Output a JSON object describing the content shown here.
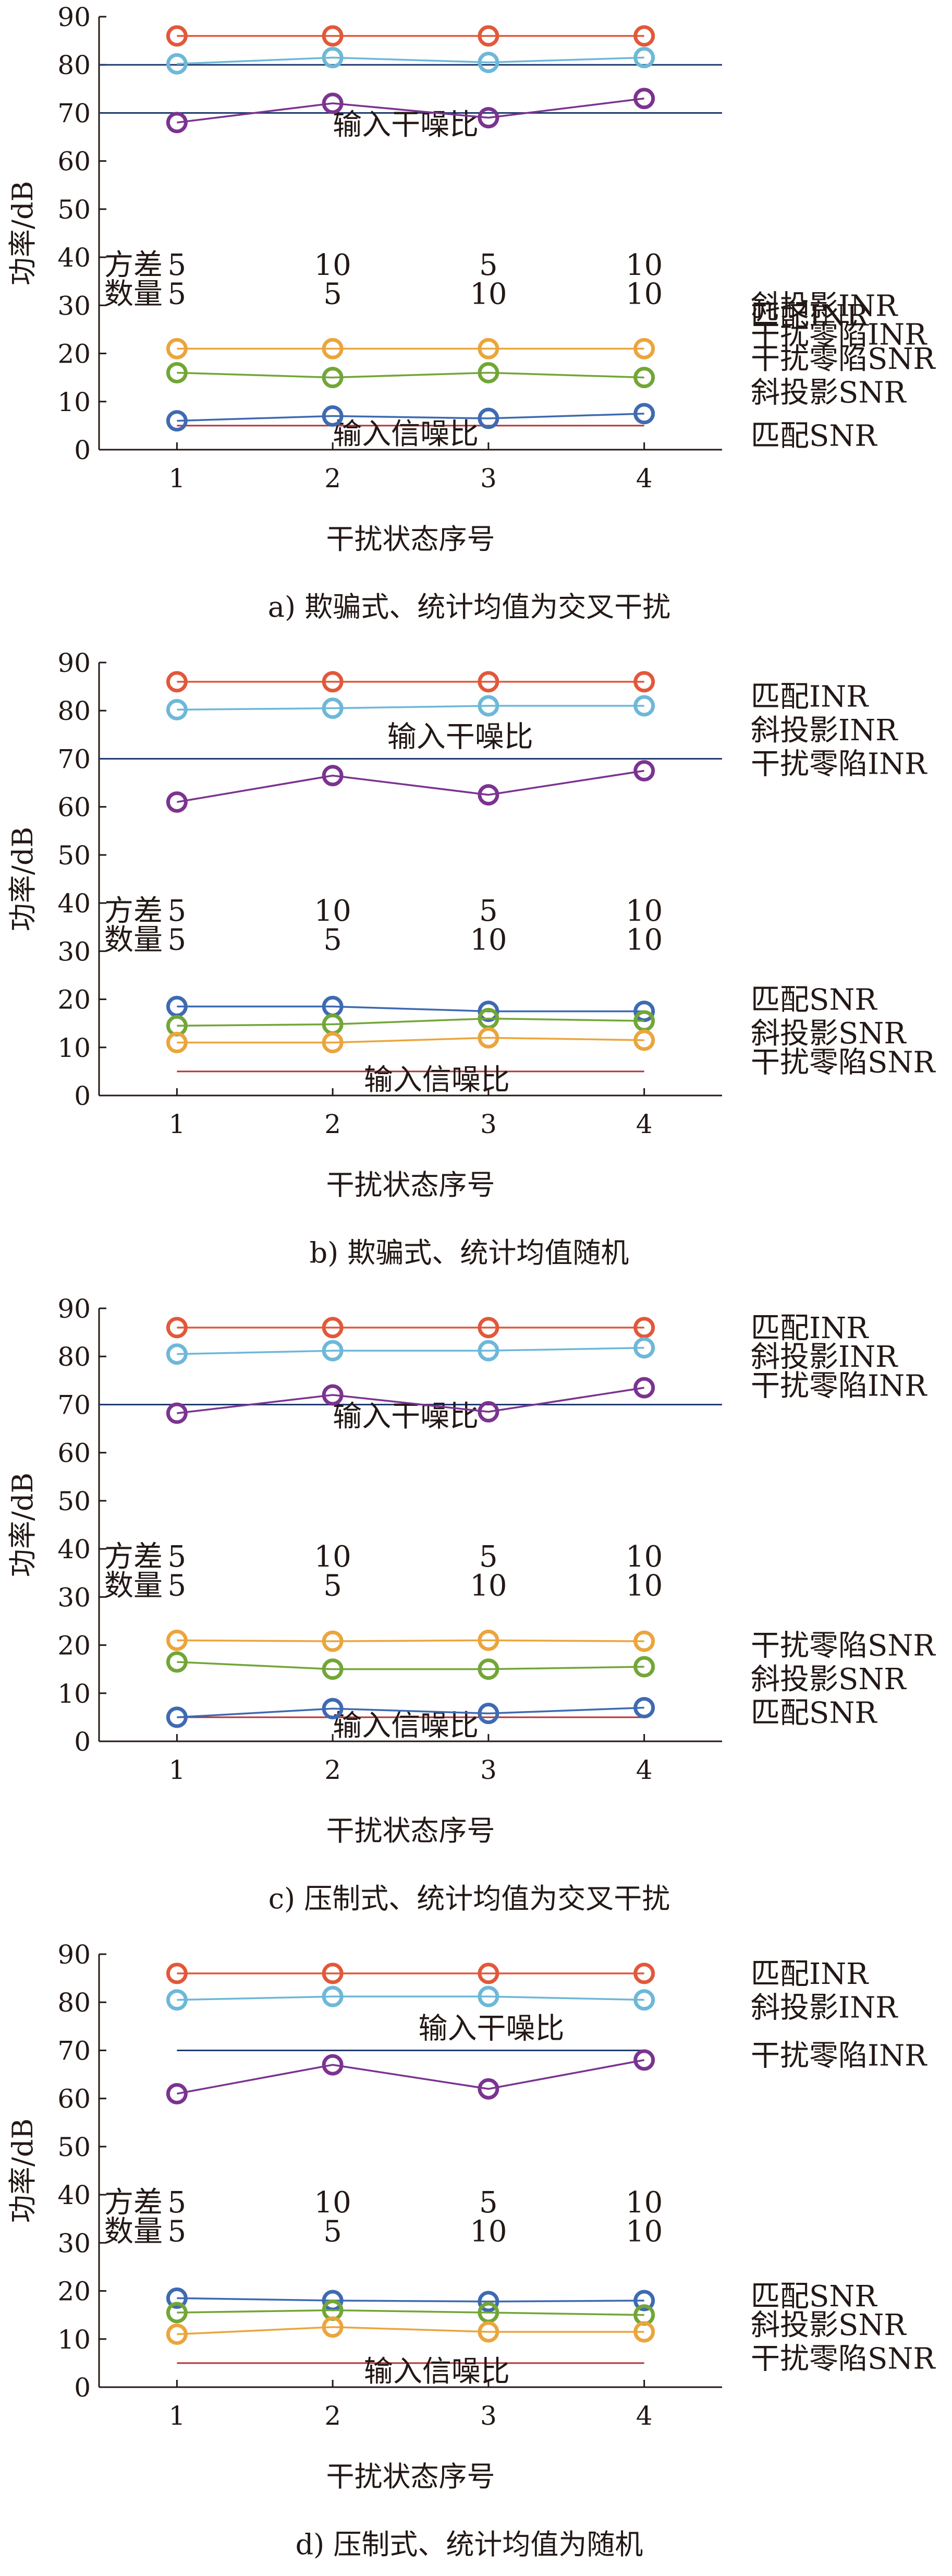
{
  "chart_data": [
    {
      "type": "line",
      "caption": "a) 欺骗式、统计均值为交叉干扰",
      "xlabel": "干扰状态序号",
      "ylabel": "功率/dB",
      "x": [
        1,
        2,
        3,
        4
      ],
      "xlim": [
        0.5,
        4.5
      ],
      "ylim": [
        0,
        90
      ],
      "yticks": [
        0,
        10,
        20,
        30,
        40,
        50,
        60,
        70,
        80,
        90
      ],
      "params": {
        "variance_label": "方差",
        "variance": [
          5,
          10,
          5,
          10
        ],
        "count_label": "数量",
        "count": [
          5,
          5,
          10,
          10
        ]
      },
      "series": [
        {
          "name": "匹配INR",
          "color": "#e2583a",
          "values": [
            86,
            86,
            86,
            86
          ]
        },
        {
          "name": "斜投影INR",
          "color": "#6db8d8",
          "values": [
            80.2,
            81.5,
            80.5,
            81.5
          ]
        },
        {
          "name": "干扰零陷INR",
          "color": "#7b3390",
          "values": [
            68,
            72,
            69,
            73
          ]
        },
        {
          "name": "干扰零陷SNR",
          "color": "#eba53c",
          "values": [
            21,
            21,
            21,
            21
          ]
        },
        {
          "name": "斜投影SNR",
          "color": "#72a637",
          "values": [
            16,
            15,
            16,
            15
          ]
        },
        {
          "name": "匹配SNR",
          "color": "#3e6ab2",
          "values": [
            6,
            7,
            6.5,
            7.5
          ]
        }
      ],
      "references": [
        {
          "label": "输入干噪比",
          "value": 70,
          "color": "#1f3a6e",
          "extend": "full"
        },
        {
          "label": "",
          "value": 80,
          "color": "#1f3a6e",
          "extend": "full"
        },
        {
          "label": "输入信噪比",
          "value": 5,
          "color": "#b3343a",
          "extend": "data"
        }
      ]
    },
    {
      "type": "line",
      "caption": "b) 欺骗式、统计均值随机",
      "xlabel": "干扰状态序号",
      "ylabel": "功率/dB",
      "x": [
        1,
        2,
        3,
        4
      ],
      "xlim": [
        0.5,
        4.5
      ],
      "ylim": [
        0,
        90
      ],
      "yticks": [
        0,
        10,
        20,
        30,
        40,
        50,
        60,
        70,
        80,
        90
      ],
      "params": {
        "variance_label": "方差",
        "variance": [
          5,
          10,
          5,
          10
        ],
        "count_label": "数量",
        "count": [
          5,
          5,
          10,
          10
        ]
      },
      "series": [
        {
          "name": "匹配INR",
          "color": "#e2583a",
          "values": [
            86,
            86,
            86,
            86
          ]
        },
        {
          "name": "斜投影INR",
          "color": "#6db8d8",
          "values": [
            80.2,
            80.5,
            81,
            81
          ]
        },
        {
          "name": "干扰零陷INR",
          "color": "#7b3390",
          "values": [
            61,
            66.5,
            62.5,
            67.5
          ]
        },
        {
          "name": "匹配SNR",
          "color": "#3e6ab2",
          "values": [
            18.5,
            18.5,
            17.5,
            17.5
          ]
        },
        {
          "name": "斜投影SNR",
          "color": "#72a637",
          "values": [
            14.5,
            14.8,
            16,
            15.5
          ]
        },
        {
          "name": "干扰零陷SNR",
          "color": "#eba53c",
          "values": [
            11,
            11,
            12,
            11.5
          ]
        }
      ],
      "references": [
        {
          "label": "输入干噪比",
          "value": 70,
          "color": "#1f3a6e",
          "extend": "full"
        },
        {
          "label": "输入信噪比",
          "value": 5,
          "color": "#b3343a",
          "extend": "data"
        }
      ]
    },
    {
      "type": "line",
      "caption": "c) 压制式、统计均值为交叉干扰",
      "xlabel": "干扰状态序号",
      "ylabel": "功率/dB",
      "x": [
        1,
        2,
        3,
        4
      ],
      "xlim": [
        0.5,
        4.5
      ],
      "ylim": [
        0,
        90
      ],
      "yticks": [
        0,
        10,
        20,
        30,
        40,
        50,
        60,
        70,
        80,
        90
      ],
      "params": {
        "variance_label": "方差",
        "variance": [
          5,
          10,
          5,
          10
        ],
        "count_label": "数量",
        "count": [
          5,
          5,
          10,
          10
        ]
      },
      "series": [
        {
          "name": "匹配INR",
          "color": "#e2583a",
          "values": [
            86,
            86,
            86,
            86
          ]
        },
        {
          "name": "斜投影INR",
          "color": "#6db8d8",
          "values": [
            80.5,
            81.2,
            81.2,
            81.8
          ]
        },
        {
          "name": "干扰零陷INR",
          "color": "#7b3390",
          "values": [
            68.2,
            72,
            68.5,
            73.5
          ]
        },
        {
          "name": "干扰零陷SNR",
          "color": "#eba53c",
          "values": [
            21,
            20.8,
            21,
            20.8
          ]
        },
        {
          "name": "斜投影SNR",
          "color": "#72a637",
          "values": [
            16.5,
            15,
            15,
            15.5
          ]
        },
        {
          "name": "匹配SNR",
          "color": "#3e6ab2",
          "values": [
            5,
            6.8,
            5.8,
            7
          ]
        }
      ],
      "references": [
        {
          "label": "输入干噪比",
          "value": 70,
          "color": "#1f3a6e",
          "extend": "full"
        },
        {
          "label": "输入信噪比",
          "value": 5,
          "color": "#b3343a",
          "extend": "data"
        }
      ]
    },
    {
      "type": "line",
      "caption": "d) 压制式、统计均值为随机",
      "xlabel": "干扰状态序号",
      "ylabel": "功率/dB",
      "x": [
        1,
        2,
        3,
        4
      ],
      "xlim": [
        0.5,
        4.5
      ],
      "ylim": [
        0,
        90
      ],
      "yticks": [
        0,
        10,
        20,
        30,
        40,
        50,
        60,
        70,
        80,
        90
      ],
      "params": {
        "variance_label": "方差",
        "variance": [
          5,
          10,
          5,
          10
        ],
        "count_label": "数量",
        "count": [
          5,
          5,
          10,
          10
        ]
      },
      "series": [
        {
          "name": "匹配INR",
          "color": "#e2583a",
          "values": [
            86,
            86,
            86,
            86
          ]
        },
        {
          "name": "斜投影INR",
          "color": "#6db8d8",
          "values": [
            80.5,
            81.2,
            81.2,
            80.5
          ]
        },
        {
          "name": "干扰零陷INR",
          "color": "#7b3390",
          "values": [
            61,
            67,
            62,
            68
          ]
        },
        {
          "name": "匹配SNR",
          "color": "#3e6ab2",
          "values": [
            18.5,
            18,
            17.8,
            18
          ]
        },
        {
          "name": "斜投影SNR",
          "color": "#72a637",
          "values": [
            15.5,
            16,
            15.5,
            15
          ]
        },
        {
          "name": "干扰零陷SNR",
          "color": "#eba53c",
          "values": [
            11,
            12.5,
            11.5,
            11.5
          ]
        }
      ],
      "references": [
        {
          "label": "输入干噪比",
          "value": 70,
          "color": "#1f3a6e",
          "extend": "data"
        },
        {
          "label": "输入信噪比",
          "value": 5,
          "color": "#b3343a",
          "extend": "data"
        }
      ]
    }
  ]
}
